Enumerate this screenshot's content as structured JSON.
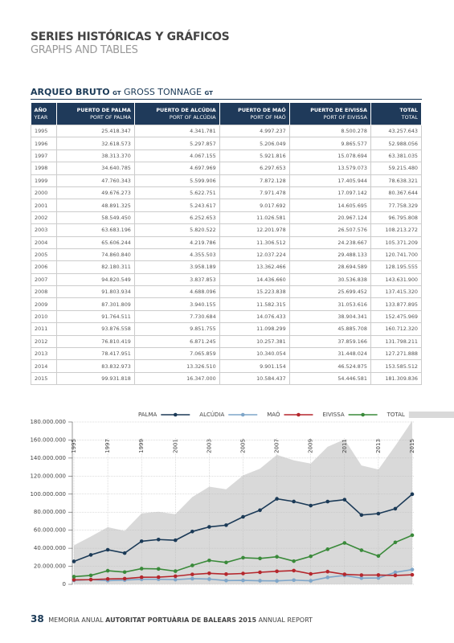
{
  "header": {
    "title": "SERIES HISTÓRICAS Y GRÁFICOS",
    "subtitle": "GRAPHS AND TABLES"
  },
  "table": {
    "title": {
      "es": "ARQUEO BRUTO",
      "es_unit": "GT",
      "en": "GROSS TONNAGE",
      "en_unit": "GT"
    },
    "columns": [
      {
        "es": "AÑO",
        "en": "YEAR"
      },
      {
        "es": "PUERTO DE PALMA",
        "en": "PORT OF PALMA"
      },
      {
        "es": "PUERTO DE ALCÚDIA",
        "en": "PORT OF ALCÚDIA"
      },
      {
        "es": "PUERTO DE MAÓ",
        "en": "PORT OF MAÓ"
      },
      {
        "es": "PUERTO DE EIVISSA",
        "en": "PORT OF EIVISSA"
      },
      {
        "es": "TOTAL",
        "en": "TOTAL"
      }
    ],
    "rows": [
      [
        "1995",
        "25.418.347",
        "4.341.781",
        "4.997.237",
        "8.500.278",
        "43.257.643"
      ],
      [
        "1996",
        "32.618.573",
        "5.297.857",
        "5.206.049",
        "9.865.577",
        "52.988.056"
      ],
      [
        "1997",
        "38.313.370",
        "4.067.155",
        "5.921.816",
        "15.078.694",
        "63.381.035"
      ],
      [
        "1998",
        "34.640.785",
        "4.697.969",
        "6.297.653",
        "13.579.073",
        "59.215.480"
      ],
      [
        "1999",
        "47.760.343",
        "5.599.906",
        "7.872.128",
        "17.405.944",
        "78.638.321"
      ],
      [
        "2000",
        "49.676.273",
        "5.622.751",
        "7.971.478",
        "17.097.142",
        "80.367.644"
      ],
      [
        "2001",
        "48.891.325",
        "5.243.617",
        "9.017.692",
        "14.605.695",
        "77.758.329"
      ],
      [
        "2002",
        "58.549.450",
        "6.252.653",
        "11.026.581",
        "20.967.124",
        "96.795.808"
      ],
      [
        "2003",
        "63.683.196",
        "5.820.522",
        "12.201.978",
        "26.507.576",
        "108.213.272"
      ],
      [
        "2004",
        "65.606.244",
        "4.219.786",
        "11.306.512",
        "24.238.667",
        "105.371.209"
      ],
      [
        "2005",
        "74.860.840",
        "4.355.503",
        "12.037.224",
        "29.488.133",
        "120.741.700"
      ],
      [
        "2006",
        "82.180.311",
        "3.958.189",
        "13.362.466",
        "28.694.589",
        "128.195.555"
      ],
      [
        "2007",
        "94.820.549",
        "3.837.853",
        "14.436.660",
        "30.536.838",
        "143.631.900"
      ],
      [
        "2008",
        "91.803.934",
        "4.688.096",
        "15.223.838",
        "25.699.452",
        "137.415.320"
      ],
      [
        "2009",
        "87.301.809",
        "3.940.155",
        "11.582.315",
        "31.053.616",
        "133.877.895"
      ],
      [
        "2010",
        "91.764.511",
        "7.730.684",
        "14.076.433",
        "38.904.341",
        "152.475.969"
      ],
      [
        "2011",
        "93.876.558",
        "9.851.755",
        "11.098.299",
        "45.885.708",
        "160.712.320"
      ],
      [
        "2012",
        "76.810.419",
        "6.871.245",
        "10.257.381",
        "37.859.166",
        "131.798.211"
      ],
      [
        "2013",
        "78.417.951",
        "7.065.859",
        "10.340.054",
        "31.448.024",
        "127.271.888"
      ],
      [
        "2014",
        "83.832.973",
        "13.326.510",
        "9.901.154",
        "46.524.875",
        "153.585.512"
      ],
      [
        "2015",
        "99.931.818",
        "16.347.000",
        "10.584.437",
        "54.446.581",
        "181.309.836"
      ]
    ]
  },
  "chart_data": {
    "type": "line",
    "grid": true,
    "legend": "top",
    "categories": [
      "1995",
      null,
      "1997",
      null,
      "1999",
      null,
      "2001",
      null,
      "2003",
      null,
      "2005",
      null,
      "2007",
      null,
      "2009",
      null,
      "2011",
      null,
      "2013",
      null,
      "2015"
    ],
    "ylim": [
      0,
      180000000
    ],
    "yticks": [
      0,
      {
        "value": 20000000,
        "label": "20.000.000"
      },
      {
        "value": 40000000,
        "label": "40.000.000"
      },
      {
        "value": 60000000,
        "label": "60.000.000"
      },
      {
        "value": 80000000,
        "label": "80.000.000"
      },
      {
        "value": 100000000,
        "label": "100.000.000"
      },
      {
        "value": 120000000,
        "label": "120.000.000"
      },
      {
        "value": 140000000,
        "label": "140.000.000"
      },
      {
        "value": 160000000,
        "label": "160.000.000"
      },
      {
        "value": 180000000,
        "label": "180.000.000"
      }
    ],
    "series": [
      {
        "name": "PALMA",
        "color": "#1b3a57",
        "values": [
          25418347,
          32618573,
          38313370,
          34640785,
          47760343,
          49676273,
          48891325,
          58549450,
          63683196,
          65606244,
          74860840,
          82180311,
          94820549,
          91803934,
          87301809,
          91764511,
          93876558,
          76810419,
          78417951,
          83832973,
          99931818
        ]
      },
      {
        "name": "ALCÚDIA",
        "color": "#7fa6c9",
        "values": [
          4341781,
          5297857,
          4067155,
          4697969,
          5599906,
          5622751,
          5243617,
          6252653,
          5820522,
          4219786,
          4355503,
          3958189,
          3837853,
          4688096,
          3940155,
          7730684,
          9851755,
          6871245,
          7065859,
          13326510,
          16347000
        ]
      },
      {
        "name": "MAÓ",
        "color": "#b5272d",
        "values": [
          4997237,
          5206049,
          5921816,
          6297653,
          7872128,
          7971478,
          9017692,
          11026581,
          12201978,
          11306512,
          12037224,
          13362466,
          14436660,
          15223838,
          11582315,
          14076433,
          11098299,
          10257381,
          10340054,
          9901154,
          10584437
        ]
      },
      {
        "name": "EIVISSA",
        "color": "#3a8a3a",
        "values": [
          8500278,
          9865577,
          15078694,
          13579073,
          17405944,
          17097142,
          14605695,
          20967124,
          26507576,
          24238667,
          29488133,
          28694589,
          30536838,
          25699452,
          31053616,
          38904341,
          45885708,
          37859166,
          31448024,
          46524875,
          54446581
        ]
      },
      {
        "name": "TOTAL",
        "color": "#d9d9d9",
        "kind": "area",
        "values": [
          43257643,
          52988056,
          63381035,
          59215480,
          78638321,
          80367644,
          77758329,
          96795808,
          108213272,
          105371209,
          120741700,
          128195555,
          143631900,
          137415320,
          133877895,
          152475969,
          160712320,
          131798211,
          127271888,
          153585512,
          181309836
        ]
      }
    ]
  },
  "footer": {
    "page": "38",
    "left": "MEMORIA ANUAL",
    "middle": "AUTORITAT PORTUÀRIA DE BALEARS 2015",
    "right": "ANNUAL REPORT"
  }
}
